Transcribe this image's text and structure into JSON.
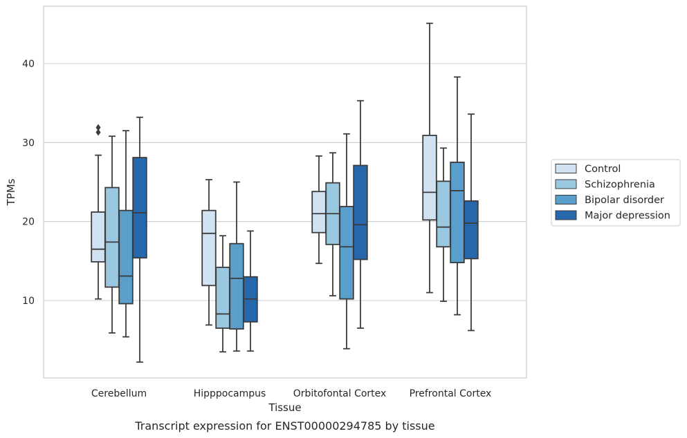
{
  "chart_data": {
    "type": "box",
    "title": "Transcript expression for ENST00000294785 by tissue",
    "xlabel": "Tissue",
    "ylabel": "TPMs",
    "ylim": [
      0,
      47
    ],
    "yticks": [
      10,
      20,
      30,
      40
    ],
    "grid": "horizontal",
    "legend_position": "right",
    "categories": [
      "Cerebellum",
      "Hipppocampus",
      "Orbitofontal Cortex",
      "Prefrontal Cortex"
    ],
    "series": [
      {
        "name": "Control",
        "color": "#d1e2f2",
        "boxes": [
          {
            "whisker_low": 10.2,
            "q1": 14.9,
            "median": 16.5,
            "q3": 21.2,
            "whisker_high": 28.4,
            "outliers": [
              31.3,
              31.9
            ]
          },
          {
            "whisker_low": 6.9,
            "q1": 11.9,
            "median": 18.5,
            "q3": 21.4,
            "whisker_high": 25.3,
            "outliers": []
          },
          {
            "whisker_low": 14.7,
            "q1": 18.6,
            "median": 21.0,
            "q3": 23.8,
            "whisker_high": 28.3,
            "outliers": []
          },
          {
            "whisker_low": 11.0,
            "q1": 20.2,
            "median": 23.7,
            "q3": 30.9,
            "whisker_high": 45.1,
            "outliers": []
          }
        ]
      },
      {
        "name": "Schizophrenia",
        "color": "#9ac8e0",
        "boxes": [
          {
            "whisker_low": 5.9,
            "q1": 11.7,
            "median": 17.4,
            "q3": 24.3,
            "whisker_high": 30.8,
            "outliers": []
          },
          {
            "whisker_low": 3.5,
            "q1": 6.5,
            "median": 8.3,
            "q3": 14.2,
            "whisker_high": 18.2,
            "outliers": []
          },
          {
            "whisker_low": 10.6,
            "q1": 17.1,
            "median": 21.0,
            "q3": 24.9,
            "whisker_high": 28.7,
            "outliers": []
          },
          {
            "whisker_low": 9.9,
            "q1": 16.8,
            "median": 19.3,
            "q3": 25.1,
            "whisker_high": 29.3,
            "outliers": []
          }
        ]
      },
      {
        "name": "Bipolar disorder",
        "color": "#5a9fcb",
        "boxes": [
          {
            "whisker_low": 5.4,
            "q1": 9.6,
            "median": 13.1,
            "q3": 21.4,
            "whisker_high": 31.5,
            "outliers": []
          },
          {
            "whisker_low": 3.6,
            "q1": 6.4,
            "median": 12.8,
            "q3": 17.2,
            "whisker_high": 25.0,
            "outliers": []
          },
          {
            "whisker_low": 3.9,
            "q1": 10.2,
            "median": 16.8,
            "q3": 21.9,
            "whisker_high": 31.1,
            "outliers": []
          },
          {
            "whisker_low": 8.2,
            "q1": 14.8,
            "median": 23.9,
            "q3": 27.5,
            "whisker_high": 38.3,
            "outliers": []
          }
        ]
      },
      {
        "name": "Major depression",
        "color": "#2767ac",
        "boxes": [
          {
            "whisker_low": 2.2,
            "q1": 15.4,
            "median": 21.1,
            "q3": 28.1,
            "whisker_high": 33.2,
            "outliers": []
          },
          {
            "whisker_low": 3.6,
            "q1": 7.3,
            "median": 10.2,
            "q3": 13.0,
            "whisker_high": 18.8,
            "outliers": []
          },
          {
            "whisker_low": 6.5,
            "q1": 15.2,
            "median": 19.6,
            "q3": 27.1,
            "whisker_high": 35.3,
            "outliers": []
          },
          {
            "whisker_low": 6.2,
            "q1": 15.3,
            "median": 19.8,
            "q3": 22.6,
            "whisker_high": 33.6,
            "outliers": []
          }
        ]
      }
    ]
  }
}
